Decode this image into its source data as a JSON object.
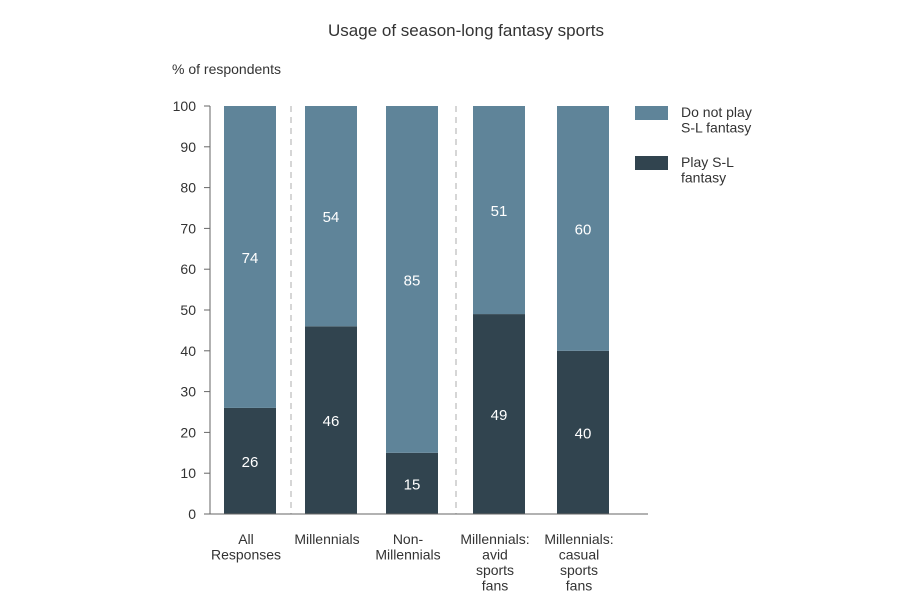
{
  "chart_data": {
    "type": "bar",
    "stacked": true,
    "title": "Usage of season-long fantasy sports",
    "ylabel": "% of respondents",
    "xlabel": "",
    "ylim": [
      0,
      100
    ],
    "yticks": [
      0,
      10,
      20,
      30,
      40,
      50,
      60,
      70,
      80,
      90,
      100
    ],
    "grid": false,
    "legend_position": "top-right",
    "categories": [
      [
        "All",
        "Responses"
      ],
      [
        "Millennials"
      ],
      [
        "Non-",
        "Millennials"
      ],
      [
        "Millennials:",
        "avid",
        "sports",
        "fans"
      ],
      [
        "Millennials:",
        "casual",
        "sports",
        "fans"
      ]
    ],
    "series": [
      {
        "name": [
          "Play S-L",
          "fantasy"
        ],
        "color": "#31444f",
        "values": [
          26,
          46,
          15,
          49,
          40
        ]
      },
      {
        "name": [
          "Do not play",
          "S-L fantasy"
        ],
        "color": "#5f8499",
        "values": [
          74,
          54,
          85,
          51,
          60
        ]
      }
    ],
    "separators_after_index": [
      0,
      2
    ]
  }
}
